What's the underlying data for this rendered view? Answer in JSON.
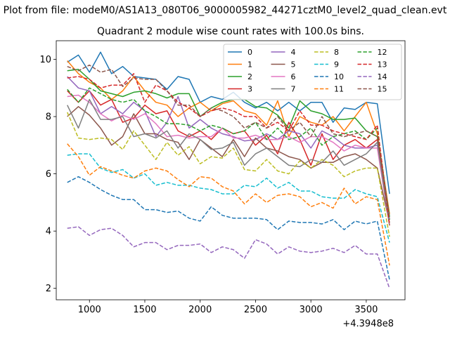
{
  "chart_data": {
    "type": "line",
    "suptitle": "Plot from file: modeM0/AS1A13_080T06_9000005982_44271cztM0_level2_quad_clean.evt",
    "title": "Quadrant 2 module wise count rates with 100.0s bins.",
    "xlabel": "",
    "ylabel": "",
    "x_offset_label": "+4.3948e8",
    "xlim": [
      700,
      3850
    ],
    "ylim": [
      1.6,
      10.65
    ],
    "xticks": [
      1000,
      1500,
      2000,
      2500,
      3000,
      3500
    ],
    "yticks": [
      2,
      4,
      6,
      8,
      10
    ],
    "grid": false,
    "legend_placement": "top-right",
    "legend_columns": 4,
    "x": [
      800,
      900,
      1000,
      1100,
      1200,
      1300,
      1400,
      1500,
      1600,
      1700,
      1800,
      1900,
      2000,
      2100,
      2200,
      2300,
      2400,
      2500,
      2600,
      2700,
      2800,
      2900,
      3000,
      3100,
      3200,
      3300,
      3400,
      3500,
      3600,
      3710
    ],
    "series": [
      {
        "name": "0",
        "color": "#1f77b4",
        "dash": "solid",
        "values": [
          9.9,
          10.15,
          9.55,
          10.25,
          9.5,
          9.75,
          9.4,
          9.35,
          9.3,
          8.95,
          9.4,
          9.3,
          8.5,
          8.7,
          8.6,
          8.85,
          8.5,
          8.3,
          8.5,
          8.2,
          8.5,
          8.2,
          8.5,
          8.5,
          7.8,
          8.3,
          8.25,
          8.5,
          8.45,
          5.3
        ]
      },
      {
        "name": "1",
        "color": "#ff7f0e",
        "dash": "solid",
        "values": [
          9.95,
          9.5,
          9.2,
          9.0,
          8.6,
          8.9,
          9.4,
          8.9,
          8.5,
          8.4,
          8.0,
          8.3,
          8.5,
          8.2,
          8.45,
          8.55,
          8.2,
          8.1,
          7.7,
          8.55,
          7.3,
          8.0,
          7.8,
          7.7,
          8.0,
          7.5,
          8.0,
          8.5,
          7.4,
          4.6
        ]
      },
      {
        "name": "2",
        "color": "#2ca02c",
        "dash": "solid",
        "values": [
          9.6,
          9.65,
          9.3,
          8.9,
          8.8,
          8.7,
          8.85,
          8.9,
          8.8,
          8.65,
          8.8,
          8.8,
          8.0,
          8.3,
          8.5,
          8.6,
          8.6,
          8.35,
          8.3,
          8.05,
          7.6,
          8.55,
          8.2,
          8.1,
          7.9,
          7.9,
          7.95,
          7.5,
          7.3,
          4.5
        ]
      },
      {
        "name": "3",
        "color": "#d62728",
        "dash": "solid",
        "values": [
          8.9,
          8.5,
          8.9,
          8.4,
          8.6,
          7.8,
          7.95,
          8.4,
          8.1,
          8.2,
          7.5,
          7.3,
          7.5,
          7.2,
          7.6,
          7.4,
          7.5,
          7.0,
          7.35,
          6.7,
          7.8,
          7.2,
          6.3,
          7.4,
          6.5,
          7.0,
          7.2,
          6.9,
          7.2,
          4.4
        ]
      },
      {
        "name": "4",
        "color": "#9467bd",
        "dash": "solid",
        "values": [
          9.4,
          9.0,
          8.9,
          8.1,
          8.35,
          8.1,
          8.5,
          8.2,
          7.3,
          7.8,
          8.7,
          7.6,
          7.9,
          7.6,
          7.4,
          7.3,
          7.15,
          7.2,
          7.4,
          7.2,
          7.5,
          7.4,
          6.9,
          7.5,
          7.3,
          7.0,
          6.9,
          6.9,
          7.0,
          4.4
        ]
      },
      {
        "name": "5",
        "color": "#8c564b",
        "dash": "solid",
        "values": [
          8.0,
          8.35,
          8.05,
          7.6,
          7.0,
          7.3,
          8.1,
          7.4,
          7.4,
          7.2,
          7.1,
          6.5,
          7.2,
          6.9,
          6.6,
          7.2,
          6.6,
          7.25,
          6.9,
          6.8,
          6.6,
          6.5,
          6.2,
          6.4,
          6.4,
          6.6,
          6.7,
          6.5,
          6.2,
          4.3
        ]
      },
      {
        "name": "6",
        "color": "#e377c2",
        "dash": "solid",
        "values": [
          8.7,
          8.75,
          8.5,
          8.1,
          7.85,
          8.05,
          7.9,
          8.1,
          7.75,
          7.3,
          7.35,
          7.25,
          7.3,
          7.3,
          7.6,
          7.25,
          7.25,
          7.35,
          7.2,
          7.2,
          7.3,
          7.1,
          7.3,
          7.3,
          7.1,
          6.8,
          7.0,
          6.9,
          6.9,
          4.2
        ]
      },
      {
        "name": "7",
        "color": "#7f7f7f",
        "dash": "solid",
        "values": [
          8.4,
          7.6,
          8.6,
          7.9,
          7.9,
          8.0,
          7.3,
          7.4,
          7.25,
          7.5,
          6.9,
          7.4,
          7.2,
          6.85,
          6.9,
          7.1,
          6.3,
          6.7,
          6.9,
          6.6,
          6.3,
          6.25,
          6.5,
          6.4,
          6.8,
          6.3,
          6.5,
          6.7,
          7.1,
          4.2
        ]
      },
      {
        "name": "8",
        "color": "#bcbd22",
        "dash": "dashed",
        "values": [
          8.15,
          7.25,
          7.2,
          7.25,
          7.2,
          6.85,
          7.5,
          7.0,
          6.5,
          7.1,
          6.65,
          6.95,
          6.35,
          6.6,
          6.55,
          6.9,
          6.15,
          6.1,
          6.5,
          6.1,
          6.0,
          6.45,
          6.2,
          6.5,
          6.3,
          5.9,
          6.1,
          6.2,
          6.2,
          3.8
        ]
      },
      {
        "name": "9",
        "color": "#17becf",
        "dash": "dashed",
        "values": [
          6.65,
          6.7,
          6.7,
          6.2,
          6.05,
          6.15,
          5.85,
          6.0,
          5.6,
          5.7,
          5.6,
          5.6,
          5.5,
          5.45,
          5.3,
          5.3,
          5.6,
          5.55,
          5.85,
          5.5,
          5.7,
          5.4,
          5.4,
          5.2,
          5.15,
          5.15,
          5.45,
          5.3,
          5.2,
          3.6
        ]
      },
      {
        "name": "10",
        "color": "#1f77b4",
        "dash": "dashed",
        "values": [
          5.7,
          5.9,
          5.7,
          5.45,
          5.25,
          5.1,
          5.1,
          4.75,
          4.75,
          4.65,
          4.7,
          4.45,
          4.35,
          4.85,
          4.55,
          4.45,
          4.45,
          4.45,
          4.4,
          4.05,
          4.35,
          4.3,
          4.3,
          4.25,
          4.4,
          4.05,
          4.35,
          4.25,
          4.35,
          2.3
        ]
      },
      {
        "name": "11",
        "color": "#ff7f0e",
        "dash": "dashed",
        "values": [
          7.05,
          6.6,
          5.95,
          6.25,
          6.1,
          5.95,
          5.85,
          6.1,
          6.2,
          6.1,
          5.8,
          5.55,
          5.9,
          5.85,
          5.55,
          5.4,
          4.95,
          5.3,
          5.0,
          5.25,
          5.3,
          5.2,
          4.85,
          5.0,
          4.8,
          5.5,
          4.95,
          5.2,
          5.1,
          2.8
        ]
      },
      {
        "name": "12",
        "color": "#2ca02c",
        "dash": "dashed",
        "values": [
          8.95,
          8.5,
          9.0,
          8.8,
          8.6,
          8.5,
          8.6,
          8.2,
          8.0,
          7.75,
          7.75,
          7.7,
          7.5,
          7.7,
          7.6,
          7.4,
          7.5,
          7.8,
          7.2,
          7.6,
          7.2,
          7.3,
          7.6,
          7.0,
          7.3,
          7.4,
          7.5,
          7.2,
          7.6,
          4.4
        ]
      },
      {
        "name": "13",
        "color": "#d62728",
        "dash": "dashed",
        "values": [
          9.35,
          9.4,
          9.3,
          9.0,
          9.1,
          9.1,
          9.5,
          8.5,
          9.1,
          8.9,
          8.5,
          8.3,
          8.0,
          8.2,
          8.3,
          8.2,
          8.0,
          8.0,
          7.6,
          7.8,
          7.5,
          8.2,
          7.7,
          7.7,
          7.5,
          7.4,
          7.3,
          7.2,
          7.7,
          4.2
        ]
      },
      {
        "name": "14",
        "color": "#9467bd",
        "dash": "dashed",
        "values": [
          4.1,
          4.15,
          3.85,
          4.05,
          4.1,
          3.85,
          3.45,
          3.6,
          3.6,
          3.35,
          3.5,
          3.5,
          3.55,
          3.25,
          3.45,
          3.35,
          3.05,
          3.7,
          3.55,
          3.2,
          3.45,
          3.3,
          3.25,
          3.3,
          3.4,
          3.25,
          3.5,
          3.2,
          3.2,
          2.0
        ]
      },
      {
        "name": "15",
        "color": "#8c564b",
        "dash": "dashed",
        "values": [
          9.75,
          9.6,
          9.8,
          9.55,
          9.65,
          9.05,
          9.35,
          9.3,
          9.3,
          8.9,
          8.4,
          8.4,
          8.0,
          8.3,
          8.2,
          8.0,
          7.6,
          7.8,
          7.6,
          8.0,
          7.5,
          7.8,
          7.3,
          8.0,
          7.4,
          7.3,
          7.4,
          7.5,
          7.3,
          4.5
        ]
      }
    ]
  }
}
